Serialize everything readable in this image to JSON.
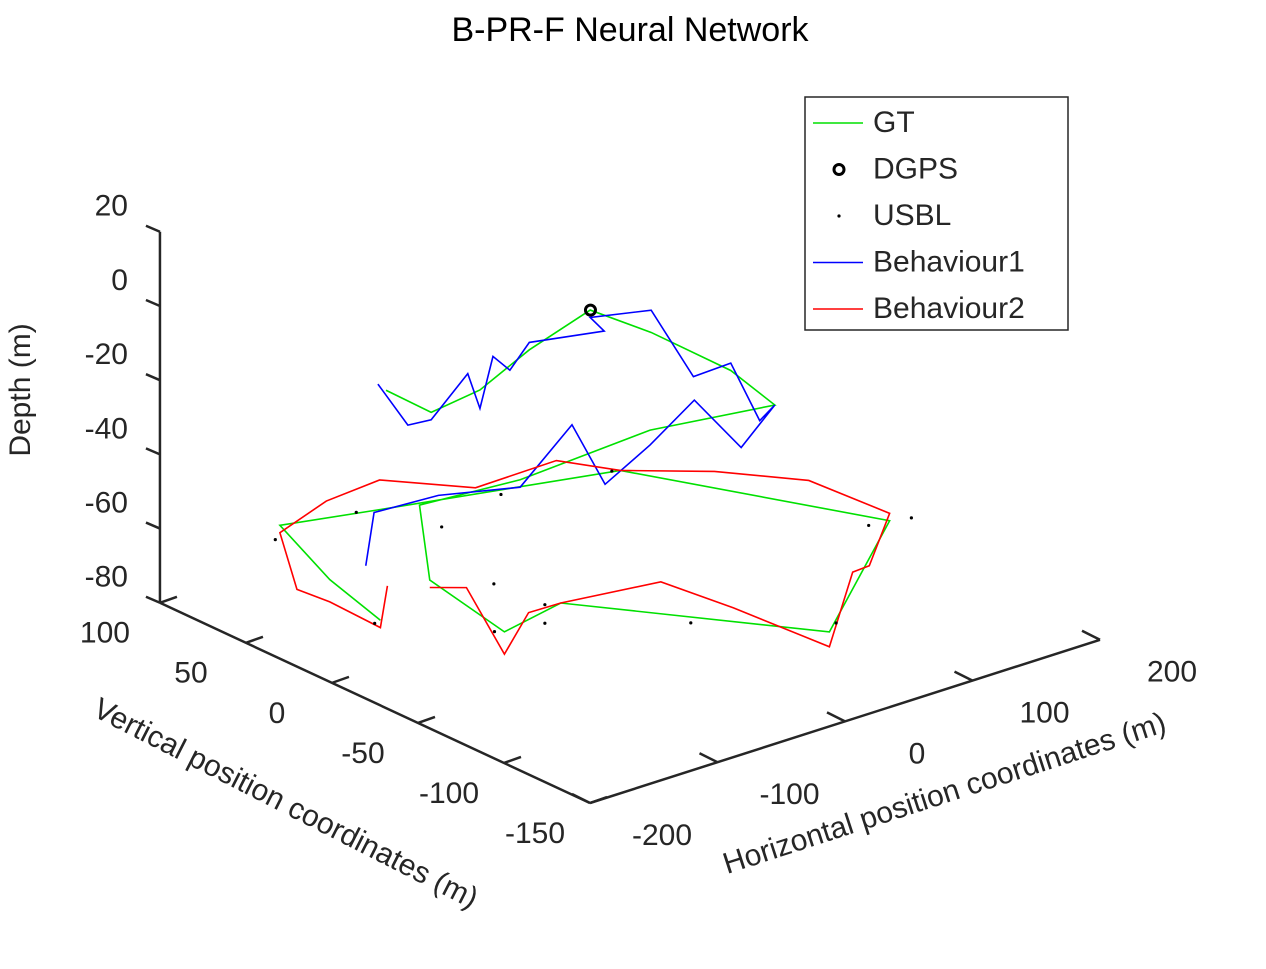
{
  "chart_data": {
    "type": "line3d",
    "title": "B-PR-F Neural Network",
    "xlabel": "Horizontal position coordinates (m)",
    "ylabel": "Vertical position coordinates (m)",
    "zlabel": "Depth (m)",
    "xlim": [
      -200,
      200
    ],
    "xticks": [
      -200,
      -100,
      0,
      100,
      200
    ],
    "ylim": [
      -150,
      100
    ],
    "yticks": [
      -150,
      -100,
      -50,
      0,
      50,
      100
    ],
    "zlim": [
      -80,
      20
    ],
    "zticks": [
      -80,
      -60,
      -40,
      -20,
      0,
      20
    ],
    "legend": "top-right",
    "series": [
      {
        "name": "GT",
        "color": "#00e000",
        "mode": "line",
        "x": [
          -105,
          -106,
          -61,
          2,
          70,
          76,
          75,
          61,
          -22,
          -132,
          -130,
          -126,
          -143,
          -88,
          8,
          147,
          72,
          -79,
          -141,
          -172,
          -189
        ],
        "y": [
          39,
          12,
          17,
          35,
          50,
          19,
          -28,
          -64,
          -53,
          -59,
          1,
          -2,
          -58,
          -50,
          -135,
          -67,
          34,
          62,
          74,
          22,
          -20
        ],
        "z": [
          -20,
          -20,
          -20,
          -20,
          -20,
          -20,
          -20,
          -20,
          -20,
          -20,
          -40,
          -60,
          -60,
          -60,
          -60,
          -60,
          -60,
          -60,
          -60,
          -60,
          -60
        ]
      },
      {
        "name": "DGPS",
        "color": "#000000",
        "mode": "circle",
        "x": [
          -4
        ],
        "y": [
          -5
        ],
        "z": [
          0
        ]
      },
      {
        "name": "USBL",
        "color": "#000000",
        "mode": "dot",
        "x": [
          -150,
          -100,
          -60,
          0,
          60,
          140,
          160,
          20,
          -40,
          -140,
          -180,
          -100,
          -60,
          -60
        ],
        "y": [
          70,
          60,
          40,
          50,
          30,
          -60,
          -70,
          -130,
          -90,
          -50,
          -10,
          -20,
          -20,
          -20
        ],
        "z": [
          -62,
          -58,
          -62,
          -62,
          -58,
          -62,
          -60,
          -60,
          -62,
          -62,
          -64,
          -60,
          -70,
          -75
        ]
      },
      {
        "name": "Behaviour1",
        "color": "#0000ff",
        "mode": "line",
        "x": [
          -110,
          -100,
          -106,
          -80,
          -61,
          -40,
          -20,
          2,
          0,
          70,
          76,
          70,
          75,
          68,
          61,
          40,
          10,
          -22,
          -60,
          -90,
          -132,
          -130,
          -140,
          -160
        ],
        "y": [
          40,
          30,
          12,
          10,
          17,
          25,
          30,
          35,
          -10,
          50,
          19,
          -10,
          -28,
          -50,
          -64,
          -60,
          -55,
          -53,
          -55,
          -58,
          -59,
          -10,
          20,
          10
        ],
        "z": [
          -18,
          -28,
          -22,
          -12,
          -25,
          -15,
          -22,
          -18,
          -5,
          -22,
          -14,
          -25,
          -18,
          -28,
          -20,
          -30,
          -15,
          -24,
          -30,
          -10,
          -22,
          -35,
          -45,
          -55
        ]
      },
      {
        "name": "Behaviour2",
        "color": "#ff0000",
        "mode": "line",
        "x": [
          -126,
          -135,
          -143,
          -120,
          -88,
          -50,
          -20,
          8,
          60,
          100,
          147,
          120,
          100,
          72,
          30,
          -20,
          -79,
          -110,
          -141,
          -160,
          -172,
          -189,
          -170
        ],
        "y": [
          -2,
          -30,
          -58,
          -55,
          -50,
          -80,
          -100,
          -135,
          -110,
          -90,
          -67,
          -40,
          0,
          34,
          40,
          50,
          62,
          70,
          74,
          50,
          22,
          -20,
          -10
        ],
        "z": [
          -62,
          -55,
          -66,
          -58,
          -60,
          -52,
          -58,
          -64,
          -55,
          -62,
          -58,
          -52,
          -56,
          -60,
          -54,
          -58,
          -52,
          -56,
          -62,
          -70,
          -66,
          -62,
          -55
        ]
      }
    ]
  }
}
